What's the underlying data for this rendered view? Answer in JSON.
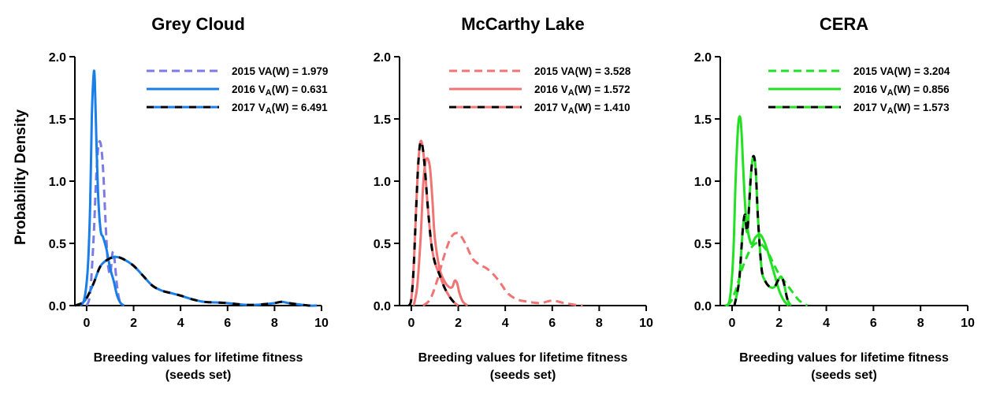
{
  "figure": {
    "ylabel": "Probability Density"
  },
  "chart_data": [
    {
      "type": "line",
      "title": "Grey Cloud",
      "xlabel_line1": "Breeding values for lifetime fitness",
      "xlabel_line2": "(seeds set)",
      "ylabel": "Probability Density",
      "xlim": [
        -0.5,
        10
      ],
      "ylim": [
        0,
        2.0
      ],
      "xticks": [
        "0",
        "2",
        "4",
        "6",
        "8",
        "10"
      ],
      "xtick_values": [
        0,
        2,
        4,
        6,
        8,
        10
      ],
      "yticks": [
        "0.0",
        "0.5",
        "1.0",
        "1.5",
        "2.0"
      ],
      "ytick_values": [
        0,
        0.5,
        1.0,
        1.5,
        2.0
      ],
      "legend_position": "top-right",
      "series": [
        {
          "name": "2015 VA(W) = 1.979",
          "legend_prefix": "2015 VA(W) = 1.979",
          "legend_sub": "",
          "legend_suffix": "",
          "color": "#7b7be6",
          "style": "dashed",
          "x": [
            0.0,
            0.15,
            0.3,
            0.4,
            0.5,
            0.6,
            0.7,
            0.8,
            0.9,
            1.0,
            1.05,
            1.1,
            1.15,
            1.2,
            1.3,
            1.4,
            1.5
          ],
          "y": [
            0.0,
            0.1,
            0.55,
            1.0,
            1.28,
            1.3,
            1.1,
            0.7,
            0.35,
            0.25,
            0.32,
            0.42,
            0.43,
            0.35,
            0.15,
            0.04,
            0.0
          ]
        },
        {
          "name": "2016 VA(W) = 0.631",
          "legend_prefix": "2016 V",
          "legend_sub": "A",
          "legend_suffix": "(W) = 0.631",
          "color": "#1a7ee8",
          "style": "solid",
          "x": [
            -0.3,
            -0.1,
            0.05,
            0.15,
            0.22,
            0.3,
            0.35,
            0.42,
            0.5,
            0.6,
            0.7,
            0.85,
            1.0,
            1.15,
            1.3,
            1.45,
            1.6
          ],
          "y": [
            0.0,
            0.05,
            0.3,
            0.8,
            1.5,
            1.86,
            1.8,
            1.3,
            0.85,
            0.6,
            0.55,
            0.45,
            0.3,
            0.2,
            0.08,
            0.02,
            0.0
          ]
        },
        {
          "name": "2017 VA(W) = 6.491",
          "legend_prefix": "2017 V",
          "legend_sub": "A",
          "legend_suffix": "(W) = 6.491",
          "color": "#1a7ee8",
          "style": "dash-black",
          "x": [
            -0.5,
            -0.2,
            0.0,
            0.3,
            0.6,
            1.0,
            1.3,
            1.6,
            2.0,
            2.4,
            2.8,
            3.2,
            3.6,
            4.0,
            4.5,
            5.0,
            5.5,
            6.0,
            6.5,
            7.0,
            7.5,
            8.0,
            8.3,
            8.6,
            9.0,
            9.5,
            9.8
          ],
          "y": [
            0.0,
            0.02,
            0.06,
            0.18,
            0.32,
            0.38,
            0.39,
            0.37,
            0.32,
            0.24,
            0.16,
            0.12,
            0.1,
            0.08,
            0.05,
            0.03,
            0.025,
            0.02,
            0.01,
            0.005,
            0.01,
            0.02,
            0.03,
            0.02,
            0.01,
            0.0,
            0.0
          ]
        }
      ]
    },
    {
      "type": "line",
      "title": "McCarthy Lake",
      "xlabel_line1": "Breeding values for lifetime fitness",
      "xlabel_line2": "(seeds set)",
      "xlim": [
        -0.5,
        10
      ],
      "ylim": [
        0,
        2.0
      ],
      "xticks": [
        "0",
        "2",
        "4",
        "6",
        "8",
        "10"
      ],
      "xtick_values": [
        0,
        2,
        4,
        6,
        8,
        10
      ],
      "yticks": [
        "0.0",
        "0.5",
        "1.0",
        "1.5",
        "2.0"
      ],
      "ytick_values": [
        0,
        0.5,
        1.0,
        1.5,
        2.0
      ],
      "legend_position": "top-right",
      "series": [
        {
          "name": "2015 VA(W) = 3.528",
          "legend_prefix": "2015 VA(W) = 3.528",
          "legend_sub": "",
          "legend_suffix": "",
          "color": "#f07474",
          "style": "dashed",
          "x": [
            0.5,
            0.8,
            1.1,
            1.4,
            1.7,
            2.0,
            2.3,
            2.6,
            2.9,
            3.2,
            3.5,
            3.8,
            4.1,
            4.5,
            5.0,
            5.5,
            6.0,
            6.5,
            7.0,
            7.3
          ],
          "y": [
            0.0,
            0.05,
            0.2,
            0.4,
            0.55,
            0.58,
            0.5,
            0.38,
            0.33,
            0.3,
            0.25,
            0.18,
            0.1,
            0.05,
            0.03,
            0.02,
            0.04,
            0.02,
            0.005,
            0.0
          ]
        },
        {
          "name": "2016 VA(W) = 1.572",
          "legend_prefix": "2016 V",
          "legend_sub": "A",
          "legend_suffix": "(W) = 1.572",
          "color": "#f07474",
          "style": "solid",
          "x": [
            0.1,
            0.25,
            0.4,
            0.5,
            0.6,
            0.7,
            0.8,
            0.9,
            1.0,
            1.2,
            1.4,
            1.6,
            1.75,
            1.85,
            1.95,
            2.05,
            2.2,
            2.4
          ],
          "y": [
            0.0,
            0.15,
            0.55,
            0.95,
            1.15,
            1.18,
            1.1,
            0.85,
            0.55,
            0.3,
            0.2,
            0.15,
            0.15,
            0.2,
            0.18,
            0.1,
            0.03,
            0.0
          ]
        },
        {
          "name": "2017 VA(W) = 1.410",
          "legend_prefix": "2017 V",
          "legend_sub": "A",
          "legend_suffix": "(W) = 1.410",
          "color": "#f07474",
          "style": "dash-black",
          "x": [
            -0.1,
            0.0,
            0.1,
            0.2,
            0.3,
            0.4,
            0.5,
            0.6,
            0.7,
            0.85,
            1.0,
            1.2,
            1.4,
            1.6,
            1.8,
            2.0
          ],
          "y": [
            0.0,
            0.05,
            0.3,
            0.75,
            1.15,
            1.32,
            1.25,
            1.05,
            0.8,
            0.5,
            0.35,
            0.25,
            0.15,
            0.08,
            0.03,
            0.0
          ]
        }
      ]
    },
    {
      "type": "line",
      "title": "CERA",
      "xlabel_line1": "Breeding values for lifetime fitness",
      "xlabel_line2": "(seeds set)",
      "xlim": [
        -0.5,
        10
      ],
      "ylim": [
        0,
        2.0
      ],
      "xticks": [
        "0",
        "2",
        "4",
        "6",
        "8",
        "10"
      ],
      "xtick_values": [
        0,
        2,
        4,
        6,
        8,
        10
      ],
      "yticks": [
        "0.0",
        "0.5",
        "1.0",
        "1.5",
        "2.0"
      ],
      "ytick_values": [
        0,
        0.5,
        1.0,
        1.5,
        2.0
      ],
      "legend_position": "top-right",
      "series": [
        {
          "name": "2015 VA(W) = 3.204",
          "legend_prefix": "2015 VA(W) = 3.204",
          "legend_sub": "",
          "legend_suffix": "",
          "color": "#22e022",
          "style": "dashed",
          "x": [
            -0.2,
            0.0,
            0.2,
            0.4,
            0.6,
            0.8,
            1.0,
            1.2,
            1.4,
            1.6,
            1.8,
            2.0,
            2.2,
            2.4,
            2.6,
            2.8,
            3.0,
            3.2
          ],
          "y": [
            0.0,
            0.05,
            0.15,
            0.28,
            0.38,
            0.46,
            0.5,
            0.5,
            0.46,
            0.4,
            0.32,
            0.25,
            0.2,
            0.15,
            0.1,
            0.05,
            0.02,
            0.0
          ]
        },
        {
          "name": "2016 VA(W) = 0.856",
          "legend_prefix": "2016 V",
          "legend_sub": "A",
          "legend_suffix": "(W) = 0.856",
          "color": "#22e022",
          "style": "solid",
          "x": [
            -0.3,
            -0.1,
            0.05,
            0.15,
            0.25,
            0.33,
            0.4,
            0.5,
            0.6,
            0.8,
            1.0,
            1.2,
            1.4,
            1.6,
            1.8,
            2.0,
            2.2,
            2.4
          ],
          "y": [
            0.0,
            0.05,
            0.4,
            1.0,
            1.42,
            1.52,
            1.4,
            1.0,
            0.7,
            0.5,
            0.55,
            0.57,
            0.5,
            0.38,
            0.25,
            0.12,
            0.04,
            0.0
          ]
        },
        {
          "name": "2017 VA(W) = 1.573",
          "legend_prefix": "2017 V",
          "legend_sub": "A",
          "legend_suffix": "(W) = 1.573",
          "color": "#22e022",
          "style": "dash-black",
          "x": [
            0.1,
            0.3,
            0.45,
            0.55,
            0.65,
            0.8,
            0.9,
            1.0,
            1.1,
            1.25,
            1.4,
            1.6,
            1.8,
            2.0,
            2.1,
            2.2,
            2.35,
            2.5
          ],
          "y": [
            0.0,
            0.2,
            0.6,
            0.73,
            0.6,
            1.05,
            1.2,
            1.1,
            0.7,
            0.3,
            0.2,
            0.15,
            0.15,
            0.22,
            0.23,
            0.18,
            0.05,
            0.0
          ]
        }
      ]
    }
  ]
}
